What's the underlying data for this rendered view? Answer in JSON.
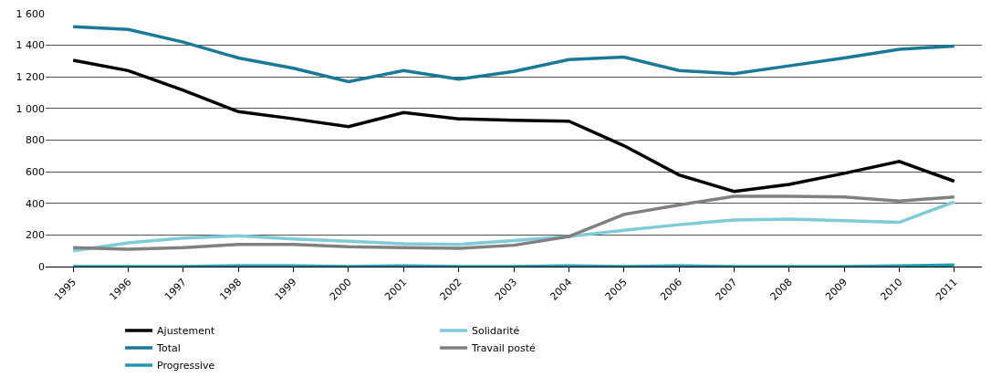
{
  "chart_data": {
    "type": "line",
    "categories": [
      "1995",
      "1996",
      "1997",
      "1998",
      "1999",
      "2000",
      "2001",
      "2002",
      "2003",
      "2004",
      "2005",
      "2006",
      "2007",
      "2008",
      "2009",
      "2010",
      "2011"
    ],
    "series": [
      {
        "name": "Ajustement",
        "color": "#000000",
        "values": [
          1305,
          1240,
          1115,
          980,
          935,
          885,
          975,
          935,
          925,
          920,
          765,
          580,
          475,
          520,
          590,
          665,
          540
        ]
      },
      {
        "name": "Solidarité",
        "color": "#7fcbd8",
        "values": [
          100,
          150,
          180,
          195,
          175,
          160,
          145,
          140,
          165,
          190,
          230,
          265,
          295,
          300,
          290,
          280,
          410
        ]
      },
      {
        "name": "Total",
        "color": "#1a7a96",
        "values": [
          1517,
          1500,
          1420,
          1320,
          1255,
          1170,
          1240,
          1185,
          1235,
          1310,
          1325,
          1240,
          1220,
          1270,
          1320,
          1375,
          1395
        ]
      },
      {
        "name": "Travail posté",
        "color": "#808080",
        "values": [
          120,
          110,
          120,
          140,
          140,
          125,
          120,
          115,
          135,
          190,
          330,
          390,
          445,
          445,
          440,
          415,
          440
        ]
      },
      {
        "name": "Progressive",
        "color": "#1f9aad",
        "values": [
          0,
          0,
          0,
          5,
          5,
          0,
          5,
          0,
          0,
          5,
          0,
          5,
          0,
          0,
          0,
          5,
          10
        ]
      }
    ],
    "ylim": [
      0,
      1600
    ],
    "yticks": [
      0,
      200,
      400,
      600,
      800,
      {
        "value": 1000,
        "label": "1 000"
      },
      {
        "value": 1200,
        "label": "1 200"
      },
      {
        "value": 1400,
        "label": "1 400"
      },
      {
        "value": 1600,
        "label": "1 600"
      }
    ],
    "grid": "y",
    "legend": "bottom",
    "marker": "none",
    "line_style": "solid"
  }
}
